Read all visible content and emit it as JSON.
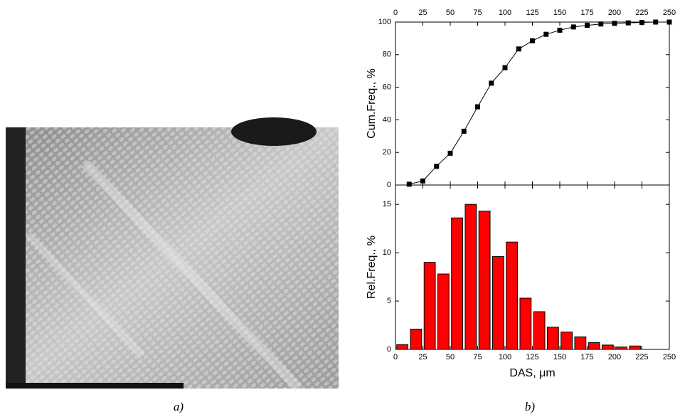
{
  "chart_data": [
    {
      "type": "line",
      "y_label": "Cum.Freq., %",
      "x": [
        12.5,
        25,
        37.5,
        50,
        62.5,
        75,
        87.5,
        100,
        112.5,
        125,
        137.5,
        150,
        162.5,
        175,
        187.5,
        200,
        212.5,
        225,
        237.5,
        250
      ],
      "y": [
        0.5,
        2.5,
        11.5,
        19.5,
        33,
        48,
        62.5,
        72,
        83.5,
        88.5,
        92.5,
        95,
        97,
        98,
        98.8,
        99.2,
        99.5,
        99.8,
        100,
        100
      ],
      "color": "#000000",
      "xlim": [
        0,
        250
      ],
      "xticks": [
        0,
        25,
        50,
        75,
        100,
        125,
        150,
        175,
        200,
        225,
        250
      ],
      "ylim": [
        0,
        100
      ],
      "yticks": [
        0,
        20,
        40,
        60,
        80,
        100
      ]
    },
    {
      "type": "histogram",
      "y_label": "Rel.Freq., %",
      "x_label": "DAS, μm",
      "bins": [
        0,
        12.5,
        25,
        37.5,
        50,
        62.5,
        75,
        87.5,
        100,
        112.5,
        125,
        137.5,
        150,
        162.5,
        175,
        187.5,
        200,
        212.5,
        225
      ],
      "values": [
        0.5,
        2.1,
        9.0,
        7.8,
        13.6,
        15.0,
        14.3,
        9.6,
        11.1,
        5.3,
        3.9,
        2.3,
        1.8,
        1.3,
        0.7,
        0.45,
        0.25,
        0.35
      ],
      "color": "#ff0000",
      "xlim": [
        0,
        250
      ],
      "xticks": [
        0,
        25,
        50,
        75,
        100,
        125,
        150,
        175,
        200,
        225,
        250
      ],
      "ylim": [
        0,
        17
      ],
      "yticks": [
        0,
        5,
        10,
        15
      ]
    }
  ],
  "captions": [
    "a)",
    "b)"
  ]
}
